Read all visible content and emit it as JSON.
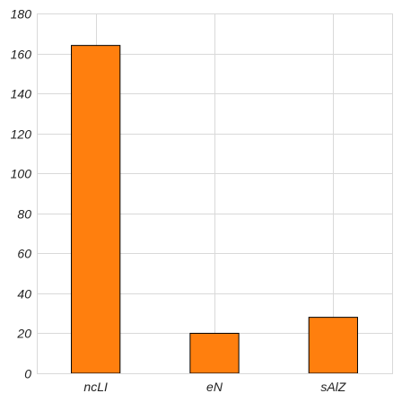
{
  "chart_data": {
    "type": "bar",
    "categories": [
      "ncLI",
      "eN",
      "sAlZ"
    ],
    "values": [
      164,
      20,
      28
    ],
    "title": "",
    "xlabel": "",
    "ylabel": "",
    "ylim": [
      0,
      180
    ],
    "yticks": [
      0,
      20,
      40,
      60,
      80,
      100,
      120,
      140,
      160,
      180
    ],
    "grid": true,
    "bar_color": "#ff7f0e",
    "bar_edge_color": "#000000"
  }
}
